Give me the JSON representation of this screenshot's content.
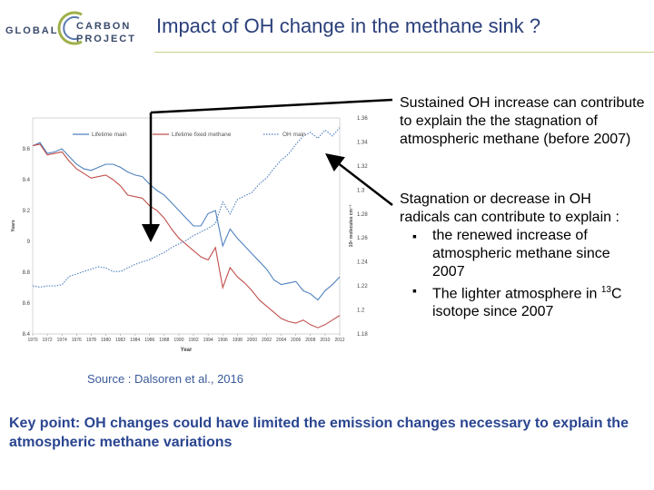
{
  "header": {
    "logo_left": "GLOBAL",
    "logo_right_1": "CARBON",
    "logo_right_2": "PROJECT",
    "title": "Impact of OH change  in the methane sink ?"
  },
  "bullets": {
    "b1": "Sustained OH increase can contribute to explain the the stagnation of atmospheric methane (before 2007)",
    "b2_lead": "Stagnation or decrease in OH radicals can contribute to explain  :",
    "b2_sub1": "the renewed increase of atmospheric methane since 2007",
    "b2_sub2_a": "The lighter atmosphere in ",
    "b2_sub2_sup": "13",
    "b2_sub2_b": "C isotope since 2007"
  },
  "source": "Source : Dalsoren et al., 2016",
  "keypoint": "Key point: OH changes could have limited the emission changes necessary to explain the atmospheric methane variations",
  "chart_data": {
    "type": "line",
    "x": [
      1970,
      1971,
      1972,
      1973,
      1974,
      1975,
      1976,
      1977,
      1978,
      1979,
      1980,
      1981,
      1982,
      1983,
      1984,
      1985,
      1986,
      1987,
      1988,
      1989,
      1990,
      1991,
      1992,
      1993,
      1994,
      1995,
      1996,
      1997,
      1998,
      1999,
      2000,
      2001,
      2002,
      2003,
      2004,
      2005,
      2006,
      2007,
      2008,
      2009,
      2010,
      2011,
      2012
    ],
    "xticks": [
      "1970",
      "1972",
      "1974",
      "1976",
      "1978",
      "1980",
      "1982",
      "1984",
      "1986",
      "1988",
      "1990",
      "1992",
      "1994",
      "1996",
      "1998",
      "2000",
      "2002",
      "2004",
      "2006",
      "2008",
      "2010",
      "2012"
    ],
    "xlabel": "Year",
    "ylabel": "Years",
    "ylim": [
      8.4,
      9.8
    ],
    "yticks": [
      "8.4",
      "8.6",
      "8.8",
      "9",
      "9.2",
      "9.4",
      "9.6"
    ],
    "y2label": "10⁶ molecules cm⁻³",
    "y2lim": [
      1.18,
      1.36
    ],
    "y2ticks": [
      "1.18",
      "1.2",
      "1.22",
      "1.24",
      "1.26",
      "1.28",
      "1.3",
      "1.32",
      "1.34",
      "1.36"
    ],
    "series": [
      {
        "name": "Lifetime main",
        "color": "#4f81bd",
        "axis": "left",
        "values": [
          9.62,
          9.64,
          9.57,
          9.58,
          9.6,
          9.55,
          9.5,
          9.47,
          9.46,
          9.48,
          9.5,
          9.5,
          9.48,
          9.45,
          9.43,
          9.42,
          9.37,
          9.33,
          9.3,
          9.25,
          9.2,
          9.15,
          9.1,
          9.1,
          9.18,
          9.2,
          8.97,
          9.08,
          9.02,
          8.97,
          8.92,
          8.87,
          8.82,
          8.75,
          8.72,
          8.73,
          8.74,
          8.68,
          8.66,
          8.62,
          8.68,
          8.72,
          8.77
        ]
      },
      {
        "name": "Lifetime fixed methane",
        "color": "#c0504d",
        "axis": "left",
        "values": [
          9.62,
          9.63,
          9.56,
          9.57,
          9.58,
          9.52,
          9.47,
          9.44,
          9.41,
          9.42,
          9.43,
          9.4,
          9.36,
          9.3,
          9.29,
          9.28,
          9.23,
          9.2,
          9.15,
          9.08,
          9.02,
          8.98,
          8.94,
          8.9,
          8.88,
          8.96,
          8.7,
          8.83,
          8.77,
          8.73,
          8.68,
          8.62,
          8.58,
          8.54,
          8.5,
          8.48,
          8.47,
          8.49,
          8.46,
          8.44,
          8.46,
          8.49,
          8.52
        ]
      },
      {
        "name": "OH main",
        "color": "#4f81bd",
        "dashed": true,
        "axis": "right",
        "values": [
          1.22,
          1.219,
          1.22,
          1.22,
          1.221,
          1.228,
          1.23,
          1.232,
          1.234,
          1.236,
          1.235,
          1.232,
          1.232,
          1.235,
          1.238,
          1.24,
          1.242,
          1.245,
          1.248,
          1.252,
          1.255,
          1.258,
          1.262,
          1.265,
          1.268,
          1.272,
          1.29,
          1.28,
          1.292,
          1.295,
          1.298,
          1.305,
          1.31,
          1.318,
          1.325,
          1.33,
          1.338,
          1.345,
          1.348,
          1.343,
          1.35,
          1.345,
          1.352
        ]
      }
    ]
  }
}
